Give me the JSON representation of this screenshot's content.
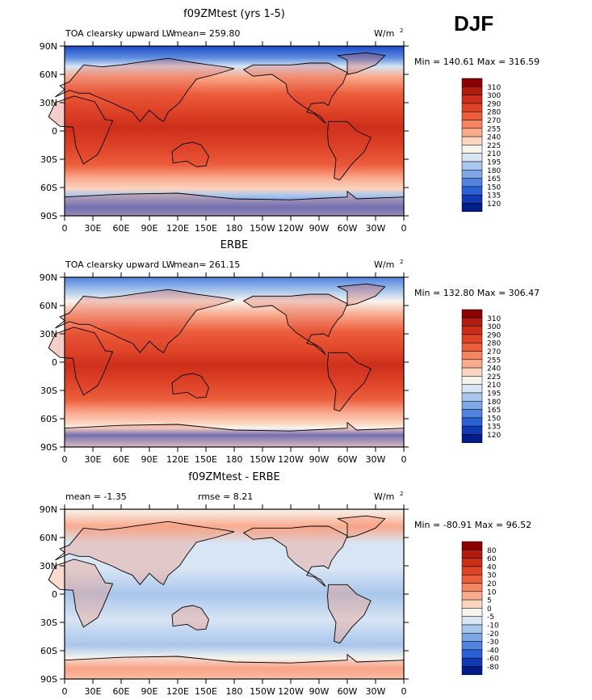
{
  "season": "DJF",
  "colors": {
    "frame": "#000000",
    "coast": "#000000",
    "warm_bg": "#e8563e",
    "cool_bg": "#f6e0d0"
  },
  "chart_data": [
    {
      "type": "heatmap",
      "title": "f09ZMtest (yrs 1-5)",
      "left_label": "TOA clearsky upward LW",
      "stat_text": "mean= 259.80",
      "units": "W/m",
      "units_sup": "2",
      "minmax": "Min = 140.61 Max = 316.59",
      "x_ticks": [
        "0",
        "30E",
        "60E",
        "90E",
        "120E",
        "150E",
        "180",
        "150W",
        "120W",
        "90W",
        "60W",
        "30W",
        "0"
      ],
      "y_ticks": [
        "90N",
        "60N",
        "30N",
        "0",
        "30S",
        "60S",
        "90S"
      ],
      "colorbar": {
        "labels": [
          "310",
          "300",
          "290",
          "280",
          "270",
          "255",
          "240",
          "225",
          "210",
          "195",
          "180",
          "165",
          "150",
          "135",
          "120"
        ],
        "colors": [
          "#8b0000",
          "#b01d10",
          "#cc2e1a",
          "#de4428",
          "#ec5e3c",
          "#f58460",
          "#f9ab8e",
          "#fcd5c0",
          "#f7f4ee",
          "#d8e5f4",
          "#a9c6ec",
          "#7ea7e5",
          "#5182de",
          "#2a5fd6",
          "#103ab5",
          "#001d88"
        ]
      }
    },
    {
      "type": "heatmap",
      "title": "ERBE",
      "left_label": "TOA clearsky upward LW",
      "stat_text": "mean= 261.15",
      "units": "W/m",
      "units_sup": "2",
      "minmax": "Min = 132.80 Max = 306.47",
      "x_ticks": [
        "0",
        "30E",
        "60E",
        "90E",
        "120E",
        "150E",
        "180",
        "150W",
        "120W",
        "90W",
        "60W",
        "30W",
        "0"
      ],
      "y_ticks": [
        "90N",
        "60N",
        "30N",
        "0",
        "30S",
        "60S",
        "90S"
      ],
      "colorbar": {
        "labels": [
          "310",
          "300",
          "290",
          "280",
          "270",
          "255",
          "240",
          "225",
          "210",
          "195",
          "180",
          "165",
          "150",
          "135",
          "120"
        ],
        "colors": [
          "#8b0000",
          "#b01d10",
          "#cc2e1a",
          "#de4428",
          "#ec5e3c",
          "#f58460",
          "#f9ab8e",
          "#fcd5c0",
          "#f7f4ee",
          "#d8e5f4",
          "#a9c6ec",
          "#7ea7e5",
          "#5182de",
          "#2a5fd6",
          "#103ab5",
          "#001d88"
        ]
      }
    },
    {
      "type": "heatmap",
      "title": "f09ZMtest - ERBE",
      "left_label": "mean =   -1.35",
      "stat_text": "rmse =    8.21",
      "units": "W/m",
      "units_sup": "2",
      "minmax": "Min = -80.91 Max =  96.52",
      "x_ticks": [
        "0",
        "30E",
        "60E",
        "90E",
        "120E",
        "150E",
        "180",
        "150W",
        "120W",
        "90W",
        "60W",
        "30W",
        "0"
      ],
      "y_ticks": [
        "90N",
        "60N",
        "30N",
        "0",
        "30S",
        "60S",
        "90S"
      ],
      "colorbar": {
        "labels": [
          "80",
          "60",
          "40",
          "30",
          "20",
          "10",
          "5",
          "0",
          "-5",
          "-10",
          "-20",
          "-30",
          "-40",
          "-60",
          "-80"
        ],
        "colors": [
          "#8b0000",
          "#b01d10",
          "#cc2e1a",
          "#de4428",
          "#ec5e3c",
          "#f58460",
          "#f9ab8e",
          "#fcd5c0",
          "#f7f4ee",
          "#d8e5f4",
          "#a9c6ec",
          "#7ea7e5",
          "#5182de",
          "#2a5fd6",
          "#103ab5",
          "#001d88"
        ]
      }
    }
  ]
}
